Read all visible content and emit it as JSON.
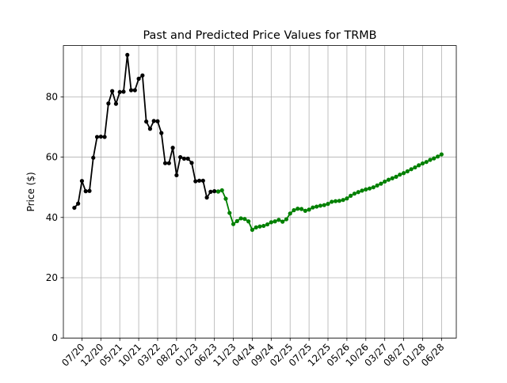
{
  "chart_data": {
    "type": "line",
    "title": "Past and Predicted Price Values for TRMB",
    "xlabel": "",
    "ylabel": "Price ($)",
    "ylim": [
      0,
      97
    ],
    "yticks": [
      0,
      20,
      40,
      60,
      80
    ],
    "xticks": [
      "07/20",
      "12/20",
      "05/21",
      "10/21",
      "03/22",
      "08/22",
      "01/23",
      "06/23",
      "11/23",
      "04/24",
      "09/24",
      "02/25",
      "07/25",
      "12/25",
      "05/26",
      "10/26",
      "03/27",
      "08/27",
      "01/28",
      "06/28"
    ],
    "grid": true,
    "legend": "none",
    "series": [
      {
        "color": "#000000",
        "x": [
          "2020-05",
          "2020-06",
          "2020-07",
          "2020-08",
          "2020-09",
          "2020-10",
          "2020-11",
          "2020-12",
          "2021-01",
          "2021-02",
          "2021-03",
          "2021-04",
          "2021-05",
          "2021-06",
          "2021-07",
          "2021-08",
          "2021-09",
          "2021-10",
          "2021-11",
          "2021-12",
          "2022-01",
          "2022-02",
          "2022-03",
          "2022-04",
          "2022-05",
          "2022-06",
          "2022-07",
          "2022-08",
          "2022-09",
          "2022-10",
          "2022-11",
          "2022-12",
          "2023-01",
          "2023-02",
          "2023-03",
          "2023-04",
          "2023-05",
          "2023-06",
          "2023-07"
        ],
        "y": [
          43.2,
          44.6,
          52.1,
          48.7,
          48.8,
          59.8,
          66.7,
          66.8,
          66.7,
          77.8,
          81.9,
          77.7,
          81.6,
          81.7,
          93.9,
          82.2,
          82.2,
          86.0,
          87.1,
          71.8,
          69.4,
          72.0,
          71.9,
          68.0,
          58.0,
          58.0,
          63.1,
          54.0,
          60.0,
          59.5,
          59.5,
          58.1,
          52.0,
          52.2,
          52.2,
          46.6,
          48.5,
          48.7,
          48.6
        ]
      },
      {
        "color": "#008000",
        "x": [
          "2023-07",
          "2023-08",
          "2023-09",
          "2023-10",
          "2023-11",
          "2023-12",
          "2024-01",
          "2024-02",
          "2024-03",
          "2024-04",
          "2024-05",
          "2024-06",
          "2024-07",
          "2024-08",
          "2024-09",
          "2024-10",
          "2024-11",
          "2024-12",
          "2025-01",
          "2025-02",
          "2025-03",
          "2025-04",
          "2025-05",
          "2025-06",
          "2025-07",
          "2025-08",
          "2025-09",
          "2025-10",
          "2025-11",
          "2025-12",
          "2026-01",
          "2026-02",
          "2026-03",
          "2026-04",
          "2026-05",
          "2026-06",
          "2026-07",
          "2026-08",
          "2026-09",
          "2026-10",
          "2026-11",
          "2026-12",
          "2027-01",
          "2027-02",
          "2027-03",
          "2027-04",
          "2027-05",
          "2027-06",
          "2027-07",
          "2027-08",
          "2027-09",
          "2027-10",
          "2027-11",
          "2027-12",
          "2028-01",
          "2028-02",
          "2028-03",
          "2028-04",
          "2028-05",
          "2028-06"
        ],
        "y": [
          48.6,
          49.0,
          46.2,
          41.5,
          37.8,
          38.8,
          39.7,
          39.5,
          38.7,
          35.9,
          36.7,
          37.0,
          37.2,
          37.7,
          38.4,
          38.7,
          39.2,
          38.6,
          39.4,
          41.3,
          42.4,
          42.9,
          42.8,
          42.2,
          42.6,
          43.3,
          43.6,
          43.9,
          44.1,
          44.5,
          45.2,
          45.4,
          45.5,
          45.8,
          46.3,
          47.2,
          47.9,
          48.4,
          48.9,
          49.3,
          49.6,
          50.0,
          50.6,
          51.2,
          51.9,
          52.5,
          53.0,
          53.5,
          54.2,
          54.7,
          55.3,
          56.0,
          56.6,
          57.3,
          57.9,
          58.4,
          59.1,
          59.6,
          60.2,
          60.9
        ]
      }
    ]
  }
}
